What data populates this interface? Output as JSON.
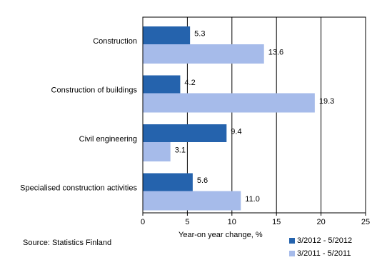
{
  "chart_data": {
    "type": "bar",
    "orientation": "horizontal",
    "categories": [
      "Construction",
      "Construction of buildings",
      "Civil engineering",
      "Specialised construction activities"
    ],
    "series": [
      {
        "name": "3/2012 - 5/2012",
        "color": "#2563ad",
        "values": [
          5.3,
          4.2,
          9.4,
          5.6
        ],
        "value_labels": [
          "5.3",
          "4.2",
          "9.4",
          "5.6"
        ]
      },
      {
        "name": "3/2011 - 5/2011",
        "color": "#a6bbea",
        "values": [
          13.6,
          19.3,
          3.1,
          11.0
        ],
        "value_labels": [
          "13.6",
          "19.3",
          "3.1",
          "11.0"
        ]
      }
    ],
    "xlim": [
      0,
      25
    ],
    "xticks": [
      0,
      5,
      10,
      15,
      20,
      25
    ],
    "grid": true,
    "xlabel": "Year-on year change, %",
    "source": "Source: Statistics Finland",
    "legend": "bottom-right"
  }
}
